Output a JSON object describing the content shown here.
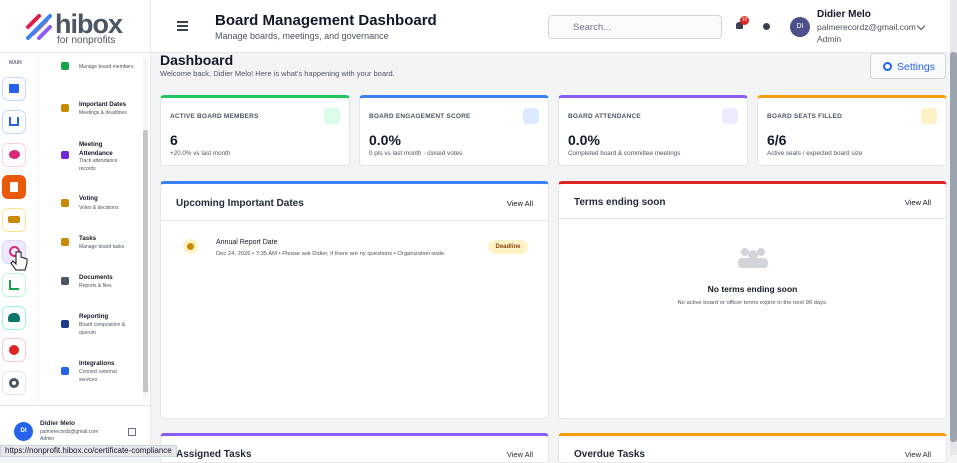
{
  "logo": {
    "name": "hibox",
    "tagline": "for nonprofits"
  },
  "header": {
    "title": "Board Management Dashboard",
    "subtitle": "Manage boards, meetings, and governance",
    "search_placeholder": "Search...",
    "notification_count": "10",
    "user": {
      "initials": "DI",
      "name": "Didier Melo",
      "email": "palmerecordz@gmail.com",
      "role": "Admin"
    }
  },
  "sidebar": {
    "section": "MAIN",
    "items": [
      {
        "subtitle": "Manage board members"
      },
      {
        "title": "Important Dates",
        "subtitle": "Meetings & deadlines"
      },
      {
        "title": "Meeting Attendance",
        "subtitle": "Track attendance records"
      },
      {
        "title": "Voting",
        "subtitle": "Votes & decisions"
      },
      {
        "title": "Tasks",
        "subtitle": "Manage board tasks"
      },
      {
        "title": "Documents",
        "subtitle": "Reports & files"
      },
      {
        "title": "Reporting",
        "subtitle": "Board composition & quorum"
      },
      {
        "title": "Integrations",
        "subtitle": "Connect external services"
      }
    ],
    "user": {
      "initials": "DI",
      "name": "Didier Melo",
      "email": "palmerecordz@gmail.com",
      "role": "Admin"
    }
  },
  "page": {
    "title": "Dashboard",
    "welcome": "Welcome back, Didier Melo! Here is what's happening with your board.",
    "settings": "Settings"
  },
  "stats": [
    {
      "label": "ACTIVE BOARD MEMBERS",
      "value": "6",
      "note": "+20.0% vs last month"
    },
    {
      "label": "BOARD ENGAGEMENT SCORE",
      "value": "0.0%",
      "note": "0 pts vs last month · closed votes"
    },
    {
      "label": "BOARD ATTENDANCE",
      "value": "0.0%",
      "note": "Completed board & committee meetings"
    },
    {
      "label": "BOARD SEATS FILLED",
      "value": "6/6",
      "note": "Active seats / expected board size"
    }
  ],
  "panels": {
    "upcoming": {
      "title": "Upcoming Important Dates",
      "link": "View All",
      "items": [
        {
          "title": "Annual Report Date",
          "details": "Dec 24, 2026 • 7:35 AM • Please ask Didier, if there are ny questions • Organization-wide",
          "tag": "Deadline"
        }
      ]
    },
    "terms": {
      "title": "Terms ending soon",
      "link": "View All",
      "empty_title": "No terms ending soon",
      "empty_text": "No active board or officer terms expire in the next 90 days."
    },
    "assigned": {
      "title": "Assigned Tasks",
      "link": "View All"
    },
    "overdue": {
      "title": "Overdue Tasks",
      "link": "View All"
    }
  },
  "status_url": "https://nonprofit.hibox.co/certificate-compliance"
}
